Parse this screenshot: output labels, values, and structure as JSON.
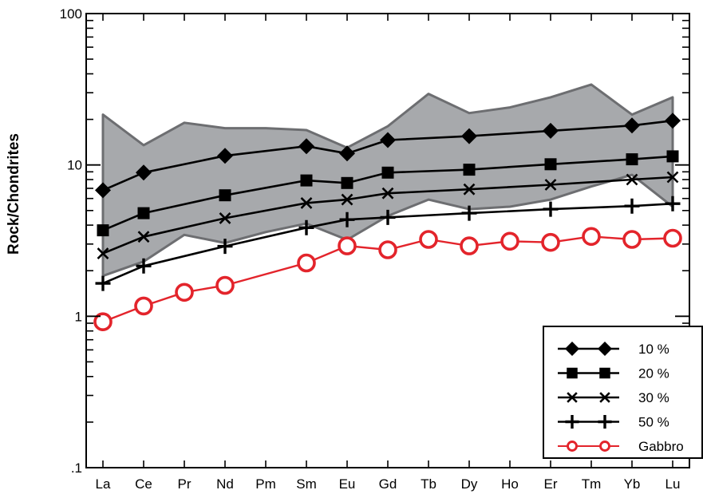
{
  "chart_data": {
    "type": "line",
    "yscale": "log",
    "ylabel": "Rock/Chondrites",
    "xlabel": "",
    "ylim": [
      0.1,
      100
    ],
    "y_tick_labels": [
      "100",
      "10",
      "1",
      ".1"
    ],
    "y_tick_values": [
      100,
      10,
      1,
      0.1
    ],
    "categories": [
      "La",
      "Ce",
      "Pr",
      "Nd",
      "Pm",
      "Sm",
      "Eu",
      "Gd",
      "Tb",
      "Dy",
      "Ho",
      "Er",
      "Tm",
      "Yb",
      "Lu"
    ],
    "shaded_range": {
      "upper": [
        21.5,
        13.5,
        19,
        17.5,
        17.5,
        17,
        13,
        18,
        29.5,
        22,
        24,
        28,
        34,
        21.5,
        28
      ],
      "lower": [
        1.85,
        2.3,
        3.45,
        3.05,
        3.6,
        4.1,
        3.2,
        4.6,
        5.9,
        5.1,
        5.3,
        5.9,
        7.2,
        8.6,
        5.3
      ],
      "fill": "#a7a9ac",
      "stroke": "#6d6e71"
    },
    "series": [
      {
        "name": "10 %",
        "marker": "diamond",
        "color": "#000000",
        "values": [
          6.8,
          8.9,
          null,
          11.5,
          null,
          13.3,
          11.9,
          14.6,
          null,
          15.5,
          null,
          16.8,
          null,
          18.2,
          19.6
        ]
      },
      {
        "name": "20 %",
        "marker": "square",
        "color": "#000000",
        "values": [
          3.7,
          4.8,
          null,
          6.3,
          null,
          7.9,
          7.6,
          8.9,
          null,
          9.3,
          null,
          10.1,
          null,
          10.9,
          11.4
        ]
      },
      {
        "name": "30 %",
        "marker": "x",
        "color": "#000000",
        "values": [
          2.6,
          3.35,
          null,
          4.45,
          null,
          5.6,
          5.9,
          6.5,
          null,
          6.9,
          null,
          7.4,
          null,
          8.0,
          8.3
        ]
      },
      {
        "name": "50 %",
        "marker": "plus",
        "color": "#000000",
        "values": [
          1.65,
          2.15,
          null,
          2.9,
          null,
          3.85,
          4.35,
          4.5,
          null,
          4.8,
          null,
          5.1,
          null,
          5.35,
          5.55
        ]
      },
      {
        "name": "Gabbro",
        "marker": "open-circle",
        "color": "#e3242b",
        "values": [
          0.92,
          1.17,
          1.44,
          1.6,
          null,
          2.25,
          2.92,
          2.75,
          3.22,
          2.92,
          3.13,
          3.08,
          3.37,
          3.22,
          3.28
        ]
      }
    ],
    "legend_position": "bottom-right",
    "grid": false
  }
}
